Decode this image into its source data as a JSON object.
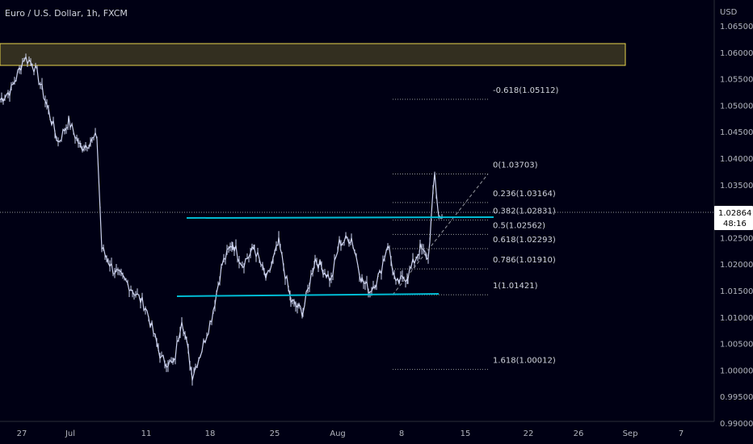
{
  "header": {
    "symbol_title": "Euro / U.S. Dollar, 1h, FXCM"
  },
  "price_axis": {
    "unit_label": "USD",
    "current_price_label": "1.02864",
    "countdown_label": "48:16"
  },
  "colors": {
    "background": "#000014",
    "candle": "#cdd3ee",
    "support_resistance": "#00bcd4",
    "zone_border": "#e8d44d",
    "zone_fill": "#e8d44d",
    "fib_lines": "#9598a1",
    "price_badge_bg": "#ffffff",
    "price_badge_text": "#000000"
  },
  "chart_data": {
    "type": "line",
    "instrument": "EUR/USD",
    "timeframe": "1h",
    "ylim": [
      0.9875,
      1.0672
    ],
    "y_ticks": [
      "1.06500",
      "1.06000",
      "1.05500",
      "1.05000",
      "1.04500",
      "1.04000",
      "1.03500",
      "1.03000",
      "1.02500",
      "1.02000",
      "1.01500",
      "1.01000",
      "1.00500",
      "1.00000",
      "0.99500",
      "0.99000"
    ],
    "x_ticks": [
      "27",
      "Jul",
      "11",
      "18",
      "25",
      "Aug",
      "8",
      "15",
      "22",
      "26",
      "Sep",
      "7"
    ],
    "series": [
      {
        "x": [
          "27",
          "27",
          "Jul",
          "Jul",
          "11",
          "11",
          "18",
          "18",
          "25",
          "25",
          "Aug",
          "Aug",
          "8",
          "8",
          "8"
        ],
        "values": [
          1.052,
          1.06,
          1.052,
          1.042,
          1.025,
          1.012,
          1.0,
          1.021,
          1.016,
          1.011,
          1.022,
          1.025,
          1.015,
          1.02,
          1.037
        ]
      }
    ],
    "last_price": 1.02864,
    "fibonacci_levels": [
      {
        "label": "-0.618(1.05112)",
        "value": 1.05112
      },
      {
        "label": "0(1.03703)",
        "value": 1.03703
      },
      {
        "label": "0.236(1.03164)",
        "value": 1.03164
      },
      {
        "label": "0.382(1.02831)",
        "value": 1.02831
      },
      {
        "label": "0.5(1.02562)",
        "value": 1.02562
      },
      {
        "label": "0.618(1.02293)",
        "value": 1.02293
      },
      {
        "label": "0.786(1.01910)",
        "value": 1.0191
      },
      {
        "label": "1(1.01421)",
        "value": 1.01421
      },
      {
        "label": "1.618(1.00012)",
        "value": 1.00012
      }
    ],
    "resistance_line": 1.0257,
    "support_line": 1.0128,
    "supply_zone": [
      1.0568,
      1.0609
    ]
  }
}
